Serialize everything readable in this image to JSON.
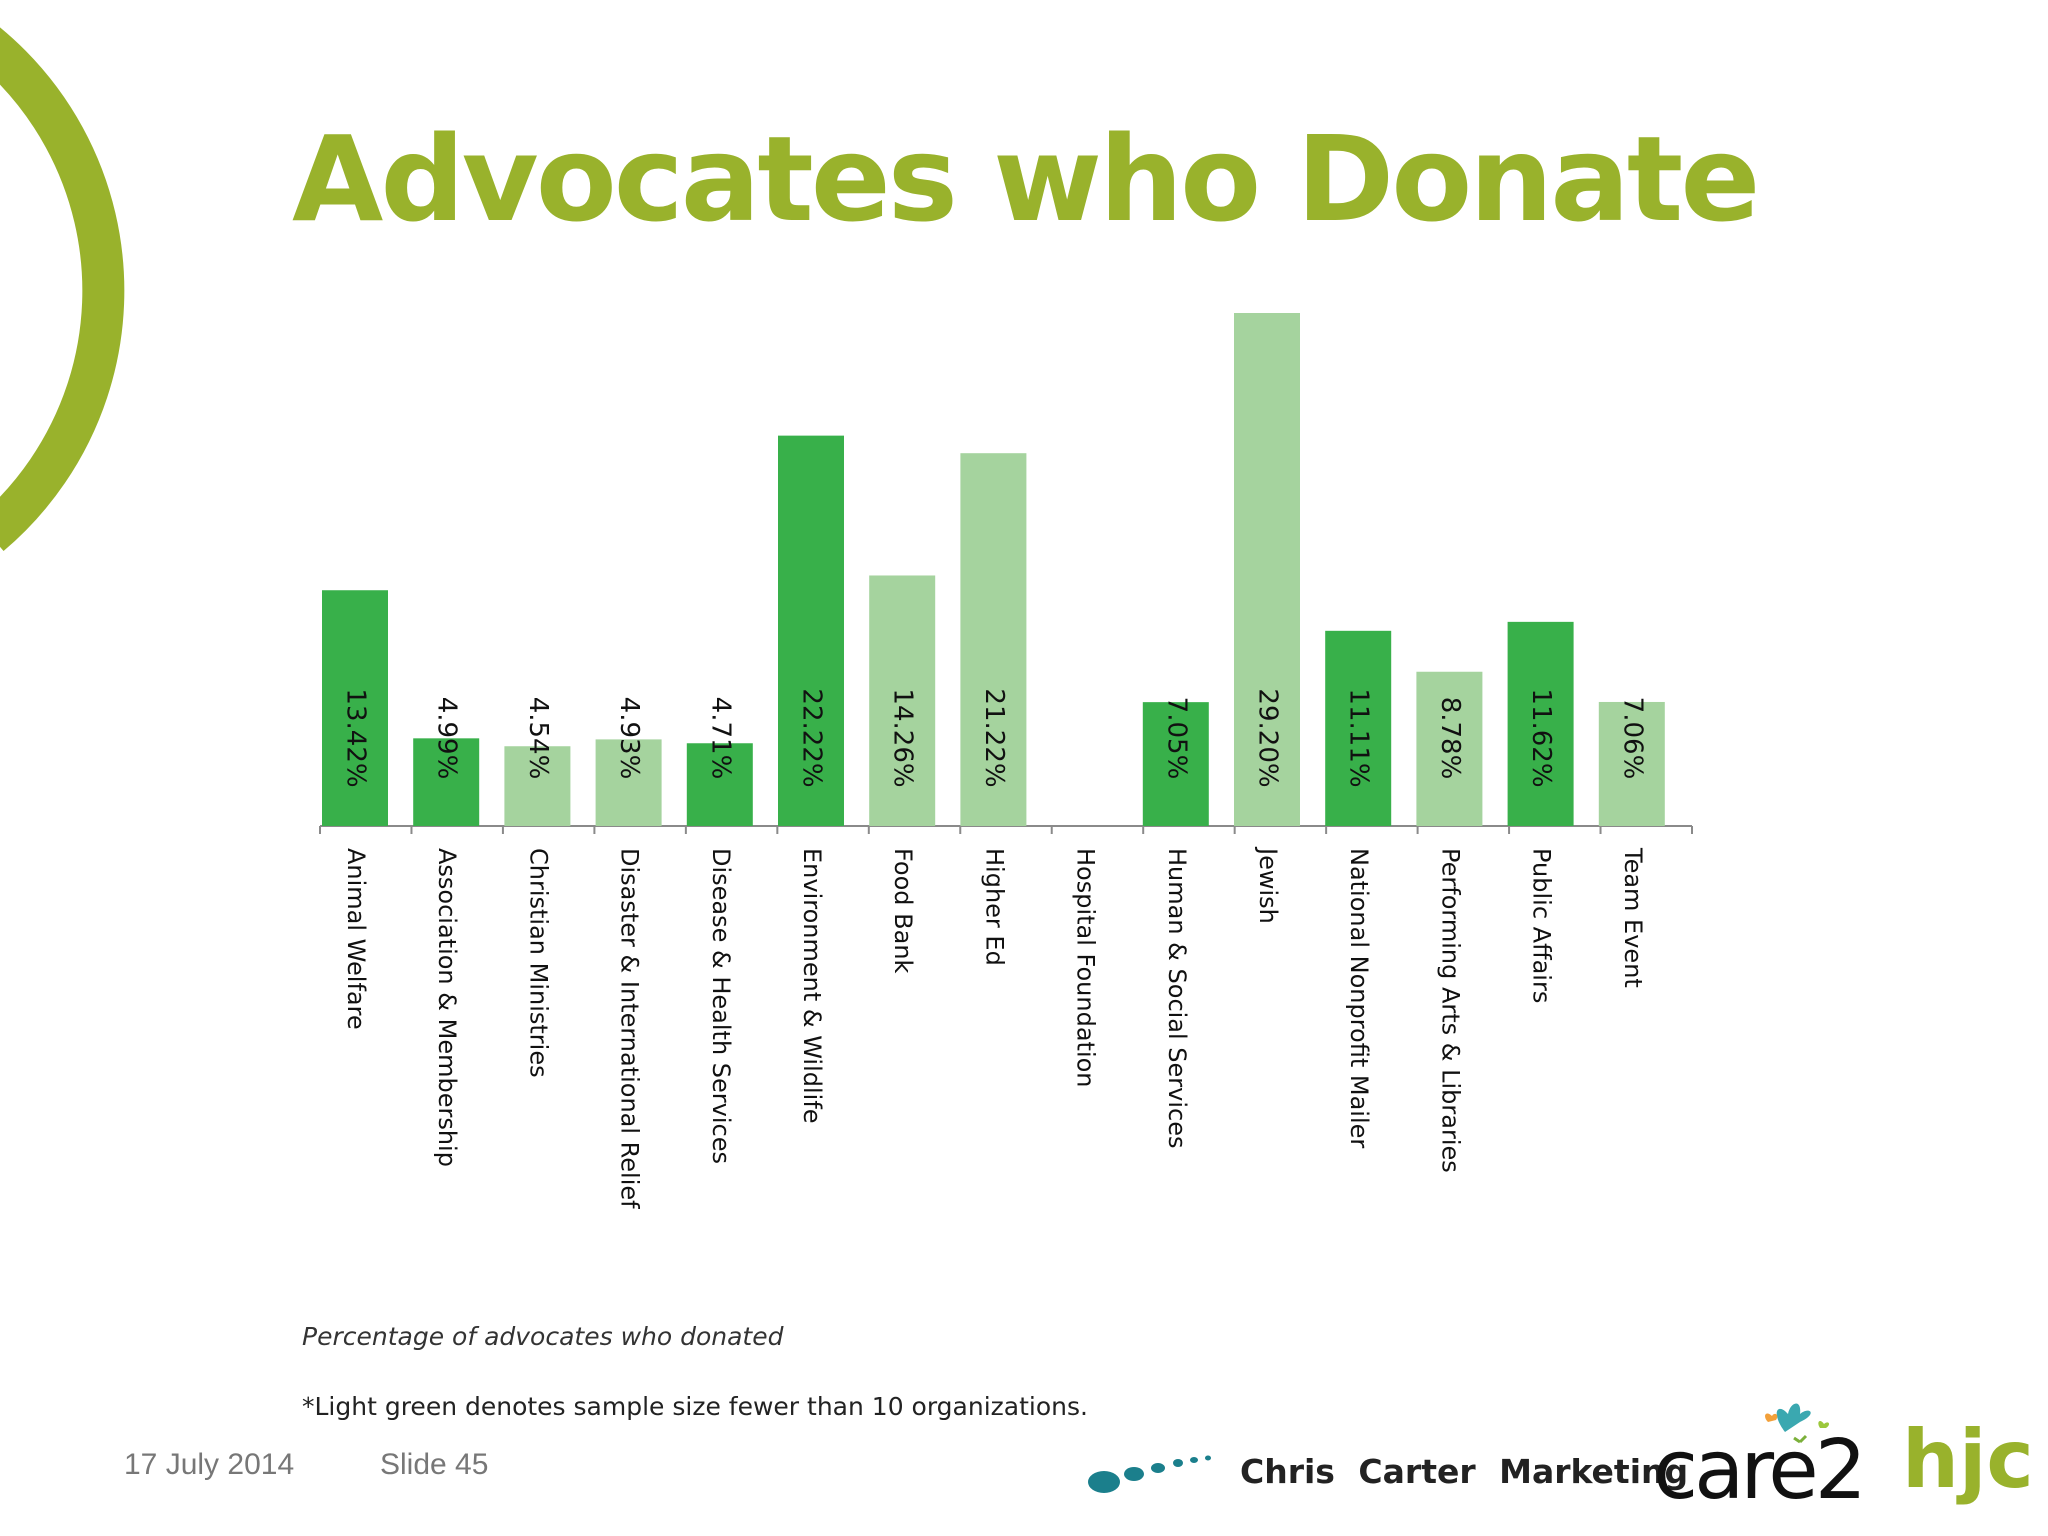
{
  "slide": {
    "title": "Advocates who Donate",
    "caption": "Percentage of advocates who donated",
    "footnote": "*Light green denotes sample size fewer than 10 organizations.",
    "date": "17 July 2014",
    "slide_number": "Slide 45"
  },
  "logos": {
    "ccm": "Chris Carter Marketing",
    "care2": "care2",
    "hjc": "hjc"
  },
  "colors": {
    "title": "#99b22c",
    "arc": "#99b22c",
    "dark_green": "#38b04a",
    "light_green": "#a5d39e",
    "axis": "#8a8a8a",
    "dots": "#1b7f8c",
    "hjc": "#99b22c"
  },
  "chart_data": {
    "type": "bar",
    "categories": [
      "Animal Welfare",
      "Association & Membership",
      "Christian Ministries",
      "Disaster & International Relief",
      "Disease & Health Services",
      "Environment & Wildlife",
      "Food Bank",
      "Higher Ed",
      "Hospital Foundation",
      "Human & Social Services",
      "Jewish",
      "National Nonprofit Mailer",
      "Performing Arts & Libraries",
      "Public Affairs",
      "Team Event"
    ],
    "values": [
      13.42,
      4.99,
      4.54,
      4.93,
      4.71,
      22.22,
      14.26,
      21.22,
      null,
      7.05,
      29.2,
      11.11,
      8.78,
      11.62,
      7.06
    ],
    "labels": [
      "13.42%",
      "4.99%",
      "4.54%",
      "4.93%",
      "4.71%",
      "22.22%",
      "14.26%",
      "21.22%",
      "",
      "7.05%",
      "29.20%",
      "11.11%",
      "8.78%",
      "11.62%",
      "7.06%"
    ],
    "small_sample": [
      false,
      false,
      true,
      true,
      false,
      false,
      true,
      true,
      false,
      false,
      true,
      false,
      true,
      false,
      true
    ],
    "ylim": [
      0,
      29.2
    ],
    "xlabel": "",
    "ylabel": "",
    "legend": "none",
    "grid": false
  }
}
